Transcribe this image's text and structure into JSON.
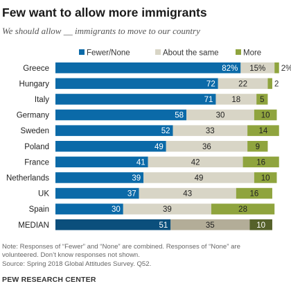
{
  "header": {
    "title": "Few want to allow more immigrants",
    "subtitle": "We should allow __ immigrants to move to our country"
  },
  "notes": {
    "line1": "Note: Responses of “Fewer” and “None” are combined. Responses of “None” are",
    "line2": "volunteered. Don’t know responses not shown.",
    "source": "Source: Spring 2018 Global Attitudes Survey. Q52."
  },
  "brand": "PEW RESEARCH CENTER",
  "chart_data": {
    "type": "bar",
    "orientation": "horizontal",
    "stacked": true,
    "categories": [
      "Greece",
      "Hungary",
      "Italy",
      "Germany",
      "Sweden",
      "Poland",
      "France",
      "Netherlands",
      "UK",
      "Spain",
      "MEDIAN"
    ],
    "series": [
      {
        "name": "Fewer/None",
        "color": "#0b6aa8",
        "values": [
          82,
          72,
          71,
          58,
          52,
          49,
          41,
          39,
          37,
          30,
          51
        ],
        "labels": [
          "82%",
          "72",
          "71",
          "58",
          "52",
          "49",
          "41",
          "39",
          "37",
          "30",
          "51"
        ]
      },
      {
        "name": "About the same",
        "color": "#d8d5c6",
        "values": [
          15,
          22,
          18,
          30,
          33,
          36,
          42,
          49,
          43,
          39,
          35
        ],
        "labels": [
          "15%",
          "22",
          "18",
          "30",
          "33",
          "36",
          "42",
          "49",
          "43",
          "39",
          "35"
        ]
      },
      {
        "name": "More",
        "color": "#8fa43e",
        "values": [
          2,
          2,
          5,
          10,
          14,
          9,
          16,
          10,
          16,
          28,
          10
        ],
        "labels": [
          "2%",
          "2",
          "5",
          "10",
          "14",
          "9",
          "16",
          "10",
          "16",
          "28",
          "10"
        ]
      }
    ],
    "median_colors": [
      "#0b4f7c",
      "#b3ad98",
      "#55612a"
    ],
    "legend_position": "top",
    "grid": false,
    "xlim": [
      0,
      100
    ]
  }
}
